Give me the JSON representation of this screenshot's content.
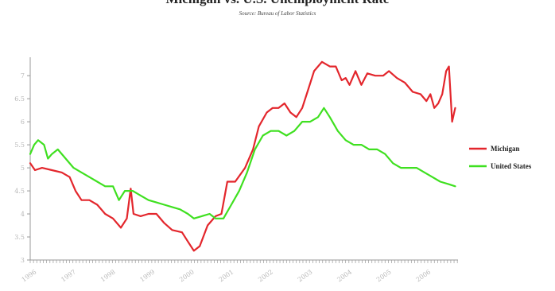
{
  "chart_data": {
    "type": "line",
    "title": "Michigan vs. U.S. Unemployment Rate",
    "subtitle": "Source: Bureau of Labor Statistics",
    "xlabel": "",
    "ylabel": "",
    "x_ticks": [
      "1996",
      "1997",
      "1998",
      "1999",
      "2000",
      "2001",
      "2002",
      "2003",
      "2004",
      "2005",
      "2006"
    ],
    "y_ticks": [
      3,
      3.5,
      4,
      4.5,
      5,
      5.5,
      6,
      6.5,
      7
    ],
    "ylim": [
      3,
      7.4
    ],
    "xlim": [
      1996.0,
      2006.85
    ],
    "grid": false,
    "legend_position": "right",
    "series": [
      {
        "name": "Michigan",
        "color": "#e3262c",
        "points": [
          [
            1996.0,
            5.1
          ],
          [
            1996.12,
            4.95
          ],
          [
            1996.3,
            5.0
          ],
          [
            1996.55,
            4.95
          ],
          [
            1996.8,
            4.9
          ],
          [
            1997.0,
            4.8
          ],
          [
            1997.15,
            4.5
          ],
          [
            1997.3,
            4.3
          ],
          [
            1997.5,
            4.3
          ],
          [
            1997.7,
            4.2
          ],
          [
            1997.9,
            4.0
          ],
          [
            1998.1,
            3.9
          ],
          [
            1998.3,
            3.7
          ],
          [
            1998.45,
            3.9
          ],
          [
            1998.55,
            4.55
          ],
          [
            1998.62,
            4.0
          ],
          [
            1998.8,
            3.95
          ],
          [
            1999.0,
            4.0
          ],
          [
            1999.2,
            4.0
          ],
          [
            1999.4,
            3.8
          ],
          [
            1999.6,
            3.65
          ],
          [
            1999.85,
            3.6
          ],
          [
            2000.0,
            3.4
          ],
          [
            2000.15,
            3.2
          ],
          [
            2000.3,
            3.3
          ],
          [
            2000.5,
            3.75
          ],
          [
            2000.7,
            3.95
          ],
          [
            2000.85,
            4.0
          ],
          [
            2001.0,
            4.7
          ],
          [
            2001.2,
            4.7
          ],
          [
            2001.45,
            5.0
          ],
          [
            2001.65,
            5.4
          ],
          [
            2001.8,
            5.9
          ],
          [
            2002.0,
            6.2
          ],
          [
            2002.15,
            6.3
          ],
          [
            2002.3,
            6.3
          ],
          [
            2002.45,
            6.4
          ],
          [
            2002.6,
            6.2
          ],
          [
            2002.75,
            6.1
          ],
          [
            2002.9,
            6.3
          ],
          [
            2003.05,
            6.7
          ],
          [
            2003.2,
            7.1
          ],
          [
            2003.4,
            7.3
          ],
          [
            2003.6,
            7.2
          ],
          [
            2003.75,
            7.2
          ],
          [
            2003.9,
            6.9
          ],
          [
            2004.0,
            6.95
          ],
          [
            2004.1,
            6.8
          ],
          [
            2004.25,
            7.1
          ],
          [
            2004.4,
            6.8
          ],
          [
            2004.55,
            7.05
          ],
          [
            2004.75,
            7.0
          ],
          [
            2004.95,
            7.0
          ],
          [
            2005.1,
            7.1
          ],
          [
            2005.3,
            6.95
          ],
          [
            2005.5,
            6.85
          ],
          [
            2005.7,
            6.65
          ],
          [
            2005.9,
            6.6
          ],
          [
            2006.05,
            6.45
          ],
          [
            2006.15,
            6.6
          ],
          [
            2006.25,
            6.3
          ],
          [
            2006.35,
            6.4
          ],
          [
            2006.45,
            6.6
          ],
          [
            2006.55,
            7.1
          ],
          [
            2006.62,
            7.2
          ],
          [
            2006.7,
            6.0
          ],
          [
            2006.78,
            6.3
          ]
        ]
      },
      {
        "name": "United States",
        "color": "#3fe020",
        "points": [
          [
            1996.0,
            5.3
          ],
          [
            1996.1,
            5.5
          ],
          [
            1996.2,
            5.6
          ],
          [
            1996.35,
            5.5
          ],
          [
            1996.45,
            5.2
          ],
          [
            1996.55,
            5.3
          ],
          [
            1996.7,
            5.4
          ],
          [
            1996.9,
            5.2
          ],
          [
            1997.1,
            5.0
          ],
          [
            1997.3,
            4.9
          ],
          [
            1997.5,
            4.8
          ],
          [
            1997.7,
            4.7
          ],
          [
            1997.9,
            4.6
          ],
          [
            1998.1,
            4.6
          ],
          [
            1998.25,
            4.3
          ],
          [
            1998.4,
            4.5
          ],
          [
            1998.6,
            4.5
          ],
          [
            1998.8,
            4.4
          ],
          [
            1999.0,
            4.3
          ],
          [
            1999.2,
            4.25
          ],
          [
            1999.4,
            4.2
          ],
          [
            1999.6,
            4.15
          ],
          [
            1999.8,
            4.1
          ],
          [
            2000.0,
            4.0
          ],
          [
            2000.15,
            3.9
          ],
          [
            2000.35,
            3.95
          ],
          [
            2000.55,
            4.0
          ],
          [
            2000.7,
            3.9
          ],
          [
            2000.9,
            3.9
          ],
          [
            2001.1,
            4.2
          ],
          [
            2001.3,
            4.5
          ],
          [
            2001.5,
            4.9
          ],
          [
            2001.7,
            5.4
          ],
          [
            2001.9,
            5.7
          ],
          [
            2002.1,
            5.8
          ],
          [
            2002.3,
            5.8
          ],
          [
            2002.5,
            5.7
          ],
          [
            2002.7,
            5.8
          ],
          [
            2002.9,
            6.0
          ],
          [
            2003.1,
            6.0
          ],
          [
            2003.3,
            6.1
          ],
          [
            2003.45,
            6.3
          ],
          [
            2003.6,
            6.1
          ],
          [
            2003.8,
            5.8
          ],
          [
            2004.0,
            5.6
          ],
          [
            2004.2,
            5.5
          ],
          [
            2004.4,
            5.5
          ],
          [
            2004.6,
            5.4
          ],
          [
            2004.8,
            5.4
          ],
          [
            2005.0,
            5.3
          ],
          [
            2005.2,
            5.1
          ],
          [
            2005.4,
            5.0
          ],
          [
            2005.6,
            5.0
          ],
          [
            2005.8,
            5.0
          ],
          [
            2006.0,
            4.9
          ],
          [
            2006.2,
            4.8
          ],
          [
            2006.4,
            4.7
          ],
          [
            2006.6,
            4.65
          ],
          [
            2006.78,
            4.6
          ]
        ]
      }
    ]
  }
}
